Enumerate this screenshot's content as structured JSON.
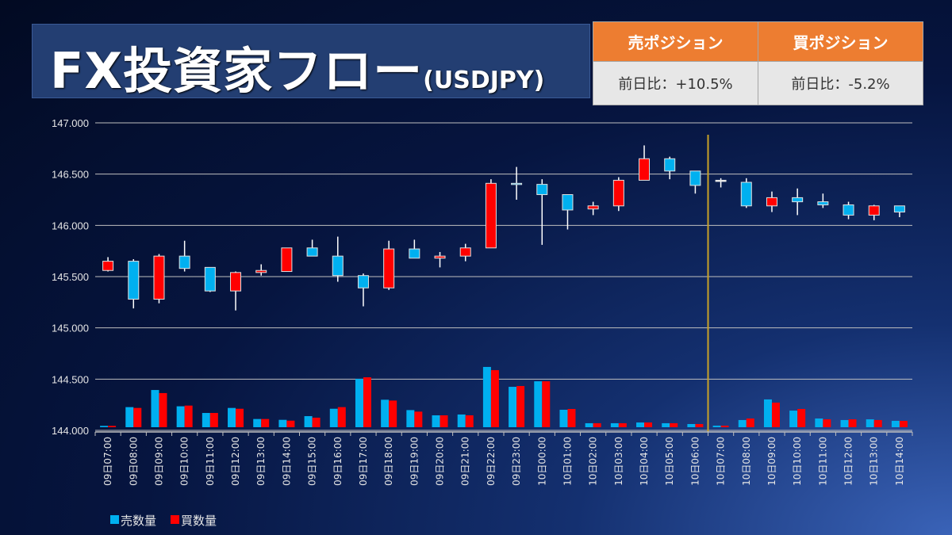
{
  "header": {
    "title": "FX投資家フロー",
    "subtitle": "(USDJPY)"
  },
  "positions": {
    "sell": {
      "label": "売ポジション",
      "value": "前日比：+10.5%"
    },
    "buy": {
      "label": "買ポジション",
      "value": "前日比：-5.2%"
    }
  },
  "colors": {
    "up": "#ff0000",
    "down": "#00b0f0",
    "doji": "#ffffff",
    "sell_volume": "#00b0f0",
    "buy_volume": "#ff0000",
    "divider": "#c9a227",
    "header_orange": "#ed7d31"
  },
  "chart_data": {
    "type": "candlestick+bar",
    "title": "FX投資家フロー(USDJPY)",
    "ylim": [
      144.0,
      147.0
    ],
    "yticks": [
      "144.000",
      "144.500",
      "145.000",
      "145.500",
      "146.000",
      "146.500",
      "147.000"
    ],
    "grid": true,
    "legend_position": "bottom-left",
    "legend": [
      "売数量",
      "買数量"
    ],
    "divider_after_category": "10日06:00",
    "categories": [
      "09日07:00",
      "09日08:00",
      "09日09:00",
      "09日10:00",
      "09日11:00",
      "09日12:00",
      "09日13:00",
      "09日14:00",
      "09日15:00",
      "09日16:00",
      "09日17:00",
      "09日18:00",
      "09日19:00",
      "09日20:00",
      "09日21:00",
      "09日22:00",
      "09日23:00",
      "10日00:00",
      "10日01:00",
      "10日02:00",
      "10日03:00",
      "10日04:00",
      "10日05:00",
      "10日06:00",
      "10日07:00",
      "10日08:00",
      "10日09:00",
      "10日10:00",
      "10日11:00",
      "10日12:00",
      "10日13:00",
      "10日14:00"
    ],
    "ohlc": [
      [
        145.56,
        145.69,
        145.55,
        145.65
      ],
      [
        145.65,
        145.67,
        145.19,
        145.28
      ],
      [
        145.28,
        145.72,
        145.24,
        145.7
      ],
      [
        145.7,
        145.85,
        145.55,
        145.58
      ],
      [
        145.59,
        145.59,
        145.35,
        145.36
      ],
      [
        145.36,
        145.55,
        145.17,
        145.54
      ],
      [
        145.54,
        145.62,
        145.51,
        145.56
      ],
      [
        145.55,
        145.78,
        145.55,
        145.78
      ],
      [
        145.78,
        145.86,
        145.7,
        145.7
      ],
      [
        145.7,
        145.89,
        145.45,
        145.51
      ],
      [
        145.51,
        145.53,
        145.21,
        145.39
      ],
      [
        145.39,
        145.85,
        145.37,
        145.77
      ],
      [
        145.77,
        145.86,
        145.68,
        145.68
      ],
      [
        145.68,
        145.74,
        145.59,
        145.7
      ],
      [
        145.7,
        145.82,
        145.65,
        145.78
      ],
      [
        145.78,
        146.45,
        145.78,
        146.41
      ],
      [
        146.41,
        146.57,
        146.25,
        146.4
      ],
      [
        146.4,
        146.45,
        145.81,
        146.3
      ],
      [
        146.3,
        146.3,
        145.96,
        146.15
      ],
      [
        146.16,
        146.23,
        146.1,
        146.19
      ],
      [
        146.19,
        146.47,
        146.14,
        146.44
      ],
      [
        146.44,
        146.78,
        146.44,
        146.65
      ],
      [
        146.65,
        146.67,
        146.45,
        146.53
      ],
      [
        146.53,
        146.53,
        146.31,
        146.39
      ],
      [
        146.44,
        146.46,
        146.37,
        146.44
      ],
      [
        146.42,
        146.46,
        146.17,
        146.19
      ],
      [
        146.19,
        146.33,
        146.13,
        146.27
      ],
      [
        146.27,
        146.36,
        146.1,
        146.23
      ],
      [
        146.23,
        146.31,
        146.17,
        146.2
      ],
      [
        146.2,
        146.23,
        146.06,
        146.1
      ],
      [
        146.1,
        146.2,
        146.05,
        146.19
      ],
      [
        146.19,
        146.19,
        146.08,
        146.13
      ]
    ],
    "series": [
      {
        "name": "売数量",
        "values": [
          13,
          196,
          363,
          204,
          139,
          188,
          80,
          72,
          108,
          180,
          472,
          268,
          167,
          116,
          124,
          588,
          394,
          448,
          170,
          39,
          39,
          46,
          39,
          31,
          15,
          70,
          271,
          162,
          85,
          70,
          77,
          62
        ]
      },
      {
        "name": "買数量",
        "values": [
          13,
          188,
          333,
          211,
          139,
          180,
          80,
          64,
          93,
          196,
          487,
          260,
          152,
          116,
          116,
          557,
          402,
          448,
          178,
          39,
          39,
          46,
          39,
          31,
          15,
          85,
          240,
          178,
          77,
          77,
          70,
          62
        ]
      }
    ]
  }
}
